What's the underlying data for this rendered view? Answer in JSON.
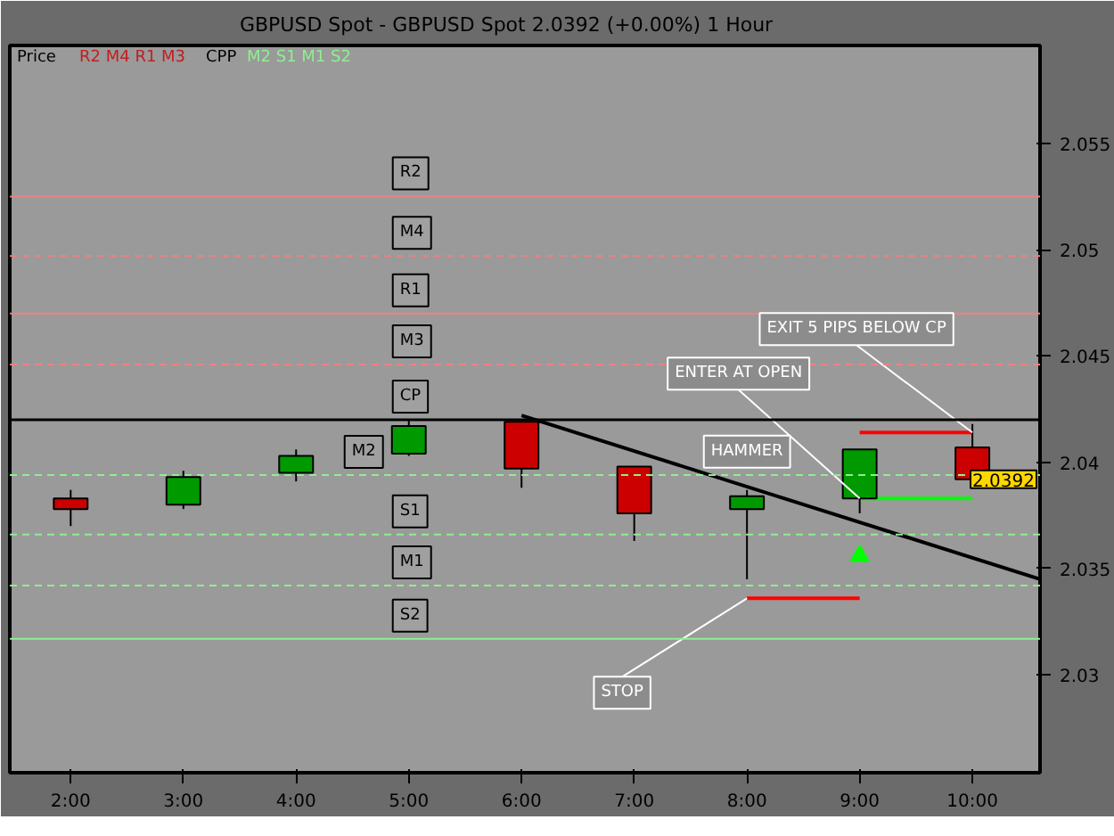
{
  "chart_data": {
    "type": "candlestick",
    "title": "GBPUSD Spot - GBPUSD Spot    2.0392 (+0.00%)    1 Hour",
    "x": [
      2,
      3,
      4,
      5,
      6,
      7,
      8,
      9,
      10
    ],
    "ohlc": [
      [
        2.0383,
        2.0387,
        2.037,
        2.0378
      ],
      [
        2.038,
        2.0396,
        2.0378,
        2.0393
      ],
      [
        2.0395,
        2.0406,
        2.0391,
        2.0403
      ],
      [
        2.0404,
        2.042,
        2.0403,
        2.0417
      ],
      [
        2.0419,
        2.042,
        2.0388,
        2.0397
      ],
      [
        2.0398,
        2.0398,
        2.0363,
        2.0376
      ],
      [
        2.0378,
        2.0387,
        2.0345,
        2.0384
      ],
      [
        2.0383,
        2.0406,
        2.0376,
        2.0406
      ],
      [
        2.0407,
        2.0418,
        2.0389,
        2.0392
      ]
    ],
    "colors": [
      "#cc0000",
      "#009900",
      "#009900",
      "#009900",
      "#cc0000",
      "#cc0000",
      "#009900",
      "#009900",
      "#cc0000"
    ],
    "series": [
      {
        "type": "line",
        "color": "#000000",
        "x": [
          6.0,
          10.6
        ],
        "values": [
          2.0422,
          2.0345
        ]
      },
      {
        "type": "line",
        "color": "#ff0000",
        "x": [
          9,
          10
        ],
        "values": [
          2.0414,
          2.0414
        ]
      },
      {
        "type": "line",
        "color": "#00ff00",
        "x": [
          9,
          10
        ],
        "values": [
          2.0383,
          2.0383
        ]
      },
      {
        "type": "line",
        "color": "#ff0000",
        "x": [
          8,
          9
        ],
        "values": [
          2.0336,
          2.0336
        ]
      },
      {
        "type": "scatter",
        "marker": "triangle",
        "color": "#00ff00",
        "x": [
          9
        ],
        "values": [
          2.0356
        ]
      }
    ],
    "ref_lines": [
      {
        "axis": "y",
        "value": 2.0525,
        "label": "R2",
        "color": "#f08080",
        "line_style": "solid"
      },
      {
        "axis": "y",
        "value": 2.0497,
        "label": "M4",
        "color": "#f08080",
        "line_style": "dashed"
      },
      {
        "axis": "y",
        "value": 2.047,
        "label": "R1",
        "color": "#f08080",
        "line_style": "solid"
      },
      {
        "axis": "y",
        "value": 2.0446,
        "label": "M3",
        "color": "#f08080",
        "line_style": "dashed"
      },
      {
        "axis": "y",
        "value": 2.042,
        "label": "CP",
        "color": "#000000",
        "line_style": "solid"
      },
      {
        "axis": "y",
        "value": 2.0394,
        "label": "M2",
        "color": "#90ee90",
        "line_style": "dashed"
      },
      {
        "axis": "y",
        "value": 2.0366,
        "label": "S1",
        "color": "#90ee90",
        "line_style": "dashed"
      },
      {
        "axis": "y",
        "value": 2.0342,
        "label": "M1",
        "color": "#90ee90",
        "line_style": "dashed"
      },
      {
        "axis": "y",
        "value": 2.0317,
        "label": "S2",
        "color": "#90ee90",
        "line_style": "solid"
      }
    ],
    "annotations": [
      "Price",
      "R2 M4 R1 M3",
      "CPP",
      "M2 S1 M1 S2",
      {
        "text": "EXIT 5 PIPS BELOW CP",
        "x": 10,
        "y": 2.0414
      },
      {
        "text": "ENTER AT OPEN",
        "x": 9,
        "y": 2.0383
      },
      {
        "text": "HAMMER",
        "x": 8,
        "y": 2.0384
      },
      {
        "text": "STOP",
        "x": 8,
        "y": 2.0336
      },
      {
        "text": "2.0392",
        "y": 2.0392
      }
    ],
    "xlim": [
      1.46,
      10.6
    ],
    "xticks": [
      {
        "value": 2,
        "label": "2:00"
      },
      {
        "value": 3,
        "label": "3:00"
      },
      {
        "value": 4,
        "label": "4:00"
      },
      {
        "value": 5,
        "label": "5:00"
      },
      {
        "value": 6,
        "label": "6:00"
      },
      {
        "value": 7,
        "label": "7:00"
      },
      {
        "value": 8,
        "label": "8:00"
      },
      {
        "value": 9,
        "label": "9:00"
      },
      {
        "value": 10,
        "label": "10:00"
      }
    ],
    "ylim": [
      2.0254,
      2.0596
    ],
    "yticks": [
      2.03,
      2.035,
      {
        "value": 2.04,
        "label": "2.04"
      },
      2.045,
      {
        "value": 2.05,
        "label": "2.05"
      },
      2.055
    ],
    "grid": false
  }
}
